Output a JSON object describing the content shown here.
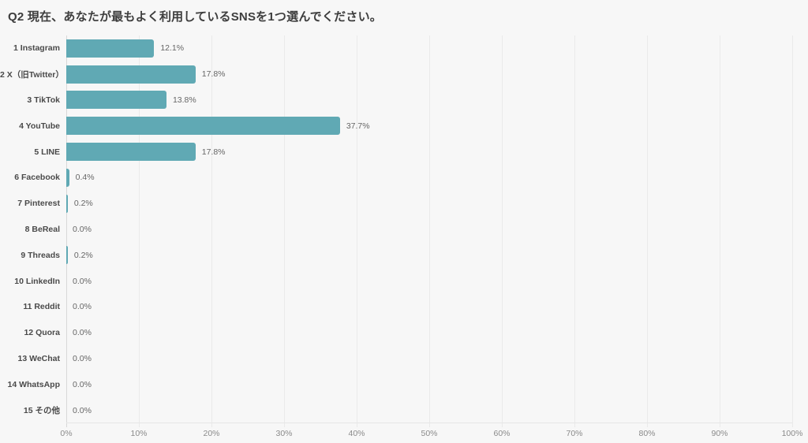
{
  "chart_data": {
    "type": "bar",
    "orientation": "horizontal",
    "title": "Q2 現在、あなたが最もよく利用しているSNSを1つ選んでください。",
    "categories": [
      "1 Instagram",
      "2 X（旧Twitter）",
      "3 TikTok",
      "4 YouTube",
      "5 LINE",
      "6 Facebook",
      "7 Pinterest",
      "8 BeReal",
      "9 Threads",
      "10 LinkedIn",
      "11 Reddit",
      "12 Quora",
      "13 WeChat",
      "14 WhatsApp",
      "15 その他"
    ],
    "values": [
      12.1,
      17.8,
      13.8,
      37.7,
      17.8,
      0.4,
      0.2,
      0.0,
      0.2,
      0.0,
      0.0,
      0.0,
      0.0,
      0.0,
      0.0
    ],
    "value_labels": [
      "12.1%",
      "17.8%",
      "13.8%",
      "37.7%",
      "17.8%",
      "0.4%",
      "0.2%",
      "0.0%",
      "0.2%",
      "0.0%",
      "0.0%",
      "0.0%",
      "0.0%",
      "0.0%",
      "0.0%"
    ],
    "xlabel": "",
    "ylabel": "",
    "xlim": [
      0,
      100
    ],
    "x_tick_labels": [
      "0%",
      "10%",
      "20%",
      "30%",
      "40%",
      "50%",
      "60%",
      "70%",
      "80%",
      "90%",
      "100%"
    ],
    "x_tick_values": [
      0,
      10,
      20,
      30,
      40,
      50,
      60,
      70,
      80,
      90,
      100
    ],
    "grid": "vertical",
    "legend": "none",
    "colors": {
      "bar": "#60a9b4",
      "background": "#f7f7f7",
      "gridline": "#eaeaea",
      "axis_line": "#d8d8d8",
      "title_text": "#3d3d3d",
      "category_text": "#4a4a4a",
      "value_text": "#666666",
      "tick_text": "#8a8a8a"
    }
  }
}
